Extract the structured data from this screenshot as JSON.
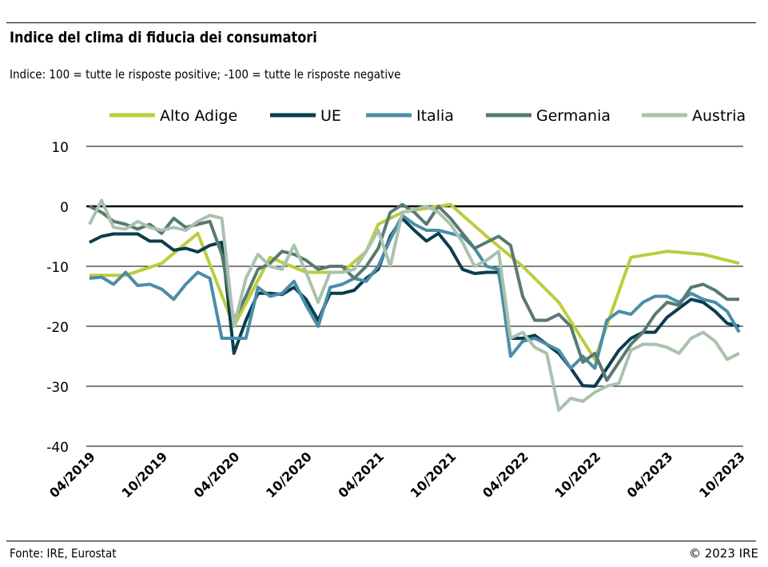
{
  "title": "Indice del clima di fiducia dei consumatori",
  "subtitle": "Indice: 100 = tutte le risposte positive; -100 = tutte le risposte negative",
  "source": "Fonte: IRE, Eurostat",
  "copyright": "© 2023 IRE",
  "chart_data": {
    "type": "line",
    "title": "Indice del clima di fiducia dei consumatori",
    "xlabel": "",
    "ylabel": "",
    "ylim": [
      -40,
      10
    ],
    "yticks": [
      10,
      0,
      -10,
      -20,
      -30,
      -40
    ],
    "x_start": "04/2019",
    "x_end": "10/2023",
    "x_unit": "month index from 04/2019",
    "xticks": [
      {
        "i": 0,
        "label": "04/2019"
      },
      {
        "i": 6,
        "label": "10/2019"
      },
      {
        "i": 12,
        "label": "04/2020"
      },
      {
        "i": 18,
        "label": "10/2020"
      },
      {
        "i": 24,
        "label": "04/2021"
      },
      {
        "i": 30,
        "label": "10/2021"
      },
      {
        "i": 36,
        "label": "04/2022"
      },
      {
        "i": 42,
        "label": "10/2022"
      },
      {
        "i": 48,
        "label": "04/2023"
      },
      {
        "i": 54,
        "label": "10/2023"
      }
    ],
    "legend": "top",
    "grid": true,
    "series": [
      {
        "name": "Alto Adige",
        "color": "#bccd3c",
        "points": [
          [
            0,
            -11.5
          ],
          [
            3,
            -11.5
          ],
          [
            6,
            -9.5
          ],
          [
            9,
            -4.5
          ],
          [
            12,
            -20
          ],
          [
            15,
            -8.5
          ],
          [
            18,
            -11
          ],
          [
            21,
            -11
          ],
          [
            23,
            -7.5
          ],
          [
            24,
            -3
          ],
          [
            26,
            -1
          ],
          [
            29,
            0
          ],
          [
            30,
            0.3
          ],
          [
            33,
            -5
          ],
          [
            36,
            -10
          ],
          [
            39,
            -16
          ],
          [
            42,
            -25.5
          ],
          [
            45,
            -8.5
          ],
          [
            48,
            -7.5
          ],
          [
            51,
            -8
          ],
          [
            54,
            -9.5
          ]
        ]
      },
      {
        "name": "UE",
        "color": "#0b3d4e",
        "values": [
          -6,
          -5,
          -4.6,
          -4.6,
          -4.6,
          -5.8,
          -5.8,
          -7.3,
          -7,
          -7.6,
          -6.5,
          -6,
          -24.5,
          -19,
          -14.5,
          -14.5,
          -14.7,
          -13.5,
          -15.5,
          -19,
          -14.5,
          -14.5,
          -14,
          -12,
          -10.5,
          -5,
          -2,
          -4,
          -5.8,
          -4.5,
          -7,
          -10.5,
          -11.2,
          -11,
          -11,
          -22,
          -22,
          -21.5,
          -23,
          -24.5,
          -27,
          -29.9,
          -30,
          -27,
          -24,
          -22,
          -21,
          -21,
          -18.5,
          -17,
          -15.5,
          -16,
          -17.5,
          -19.5,
          -20
        ]
      },
      {
        "name": "Italia",
        "color": "#4b8da8",
        "values": [
          -12,
          -11.8,
          -13,
          -11,
          -13.2,
          -13,
          -13.8,
          -15.5,
          -13,
          -11,
          -12,
          -22,
          -22,
          -22,
          -13.5,
          -15,
          -14.5,
          -12.5,
          -16.5,
          -20,
          -13.5,
          -13,
          -12,
          -12.5,
          -10,
          -5.5,
          -1.5,
          -3,
          -4,
          -4,
          -4.5,
          -5,
          -7,
          -10,
          -10.5,
          -25,
          -22.5,
          -22,
          -23,
          -24,
          -27,
          -25,
          -27,
          -19,
          -17.5,
          -18,
          -16,
          -15,
          -15,
          -16,
          -14.5,
          -15.5,
          -16,
          -17.5,
          -21
        ]
      },
      {
        "name": "Germania",
        "color": "#587a70",
        "values": [
          0,
          -1,
          -2.5,
          -3,
          -3.8,
          -3,
          -4.5,
          -2,
          -3.5,
          -3,
          -2.5,
          -8,
          -19,
          -15,
          -10.5,
          -9.5,
          -7.5,
          -8,
          -9,
          -10.5,
          -10,
          -10,
          -12,
          -10,
          -7,
          -1,
          0.3,
          -1,
          -3,
          0,
          -2,
          -4.5,
          -7,
          -6,
          -5,
          -6.5,
          -15,
          -19,
          -19,
          -18,
          -20,
          -26,
          -24.5,
          -29,
          -26,
          -23,
          -21,
          -18,
          -16,
          -16.5,
          -13.5,
          -13,
          -14,
          -15.5,
          -15.5
        ]
      },
      {
        "name": "Austria",
        "color": "#a9c2ad",
        "values": [
          -3,
          1,
          -3.5,
          -3.8,
          -2.5,
          -3.5,
          -4,
          -3.5,
          -4,
          -2.5,
          -1.5,
          -2,
          -20,
          -12,
          -8,
          -10,
          -10.5,
          -6.5,
          -11,
          -16,
          -11,
          -11,
          -10.5,
          -7.5,
          -4,
          -10,
          -1,
          -0.5,
          0,
          -1,
          -3,
          -6,
          -10,
          -9,
          -7.5,
          -22,
          -21,
          -23.5,
          -24.5,
          -34,
          -32,
          -32.5,
          -31,
          -30,
          -29.5,
          -24,
          -23,
          -23,
          -23.5,
          -24.5,
          -22,
          -21,
          -22.5,
          -25.5,
          -24.5
        ]
      }
    ]
  }
}
